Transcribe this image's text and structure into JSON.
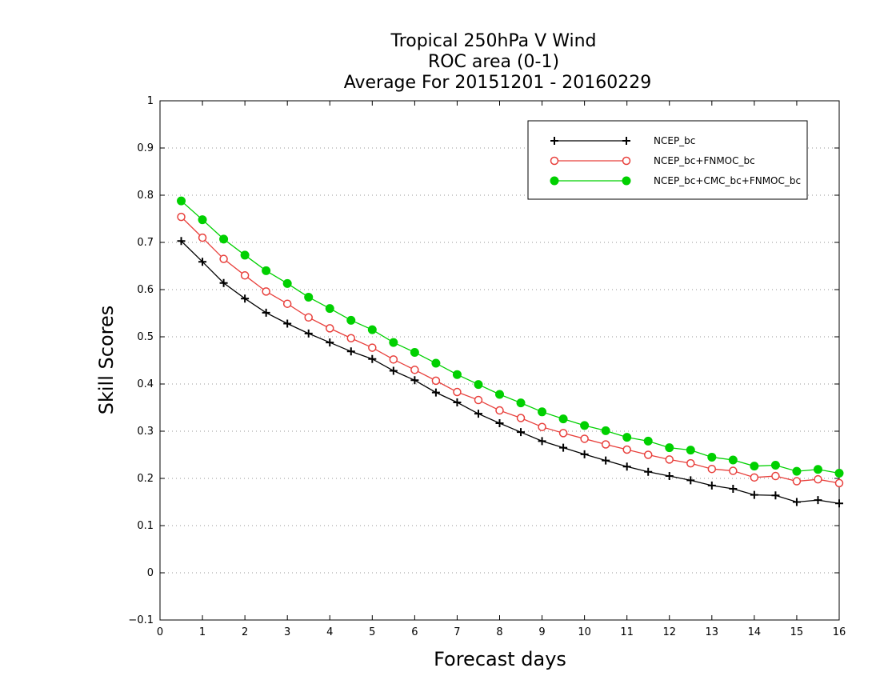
{
  "chart_data": {
    "type": "line",
    "title_lines": [
      "Tropical 250hPa V Wind",
      "ROC area (0-1)",
      "Average For 20151201 - 20160229"
    ],
    "xlabel": "Forecast days",
    "ylabel": "Skill Scores",
    "xlim": [
      0,
      16
    ],
    "ylim": [
      -0.1,
      1
    ],
    "x_ticks": [
      "0",
      "1",
      "2",
      "3",
      "4",
      "5",
      "6",
      "7",
      "8",
      "9",
      "10",
      "11",
      "12",
      "13",
      "14",
      "15",
      "16"
    ],
    "y_ticks": [
      "−0.1",
      "0",
      "0.1",
      "0.2",
      "0.3",
      "0.4",
      "0.5",
      "0.6",
      "0.7",
      "0.8",
      "0.9",
      "1"
    ],
    "y_tick_values": [
      -0.1,
      0,
      0.1,
      0.2,
      0.3,
      0.4,
      0.5,
      0.6,
      0.7,
      0.8,
      0.9,
      1
    ],
    "grid": "horizontal dotted",
    "legend_position": "top-right",
    "x": [
      0.5,
      1,
      1.5,
      2,
      2.5,
      3,
      3.5,
      4,
      4.5,
      5,
      5.5,
      6,
      6.5,
      7,
      7.5,
      8,
      8.5,
      9,
      9.5,
      10,
      10.5,
      11,
      11.5,
      12,
      12.5,
      13,
      13.5,
      14,
      14.5,
      15,
      15.5,
      16
    ],
    "series": [
      {
        "name": "NCEP_bc",
        "color": "#000000",
        "marker": "plus",
        "values": [
          0.703,
          0.659,
          0.614,
          0.581,
          0.551,
          0.528,
          0.507,
          0.488,
          0.469,
          0.453,
          0.428,
          0.408,
          0.382,
          0.361,
          0.337,
          0.317,
          0.298,
          0.279,
          0.265,
          0.251,
          0.238,
          0.225,
          0.214,
          0.205,
          0.196,
          0.185,
          0.178,
          0.165,
          0.164,
          0.15,
          0.154,
          0.147
        ]
      },
      {
        "name": "NCEP_bc+FNMOC_bc",
        "color": "#e8403c",
        "marker": "open-circle",
        "values": [
          0.754,
          0.71,
          0.665,
          0.63,
          0.596,
          0.57,
          0.541,
          0.518,
          0.497,
          0.477,
          0.452,
          0.43,
          0.407,
          0.383,
          0.366,
          0.344,
          0.328,
          0.309,
          0.296,
          0.284,
          0.272,
          0.261,
          0.25,
          0.24,
          0.232,
          0.22,
          0.216,
          0.202,
          0.205,
          0.194,
          0.198,
          0.19
        ]
      },
      {
        "name": "NCEP_bc+CMC_bc+FNMOC_bc",
        "color": "#00d000",
        "marker": "filled-circle",
        "values": [
          0.788,
          0.748,
          0.707,
          0.673,
          0.64,
          0.613,
          0.584,
          0.56,
          0.535,
          0.515,
          0.488,
          0.467,
          0.444,
          0.42,
          0.399,
          0.378,
          0.36,
          0.341,
          0.326,
          0.312,
          0.301,
          0.287,
          0.279,
          0.265,
          0.26,
          0.245,
          0.239,
          0.226,
          0.228,
          0.215,
          0.219,
          0.211
        ]
      }
    ]
  }
}
